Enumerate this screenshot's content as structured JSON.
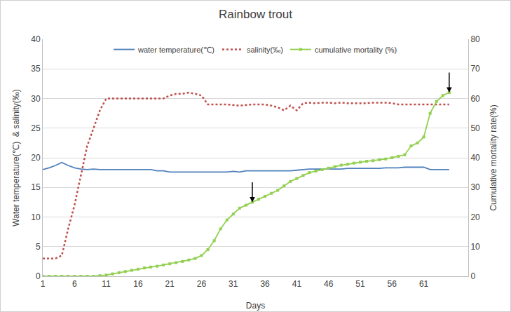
{
  "chart_data": {
    "type": "line",
    "title": "Rainbow trout",
    "x_label": "Days",
    "y_label": "Water temperature(℃)  & salinity(‰)",
    "y2_label": "Cumulative mortality rate(%)",
    "x": [
      1,
      2,
      3,
      4,
      5,
      6,
      7,
      8,
      9,
      10,
      11,
      12,
      13,
      14,
      15,
      16,
      17,
      18,
      19,
      20,
      21,
      22,
      23,
      24,
      25,
      26,
      27,
      28,
      29,
      30,
      31,
      32,
      33,
      34,
      35,
      36,
      37,
      38,
      39,
      40,
      41,
      42,
      43,
      44,
      45,
      46,
      47,
      48,
      49,
      50,
      51,
      52,
      53,
      54,
      55,
      56,
      57,
      58,
      59,
      60,
      61,
      62,
      63,
      64,
      65
    ],
    "xlim": [
      1,
      68
    ],
    "xticks": [
      1,
      6,
      11,
      16,
      21,
      26,
      31,
      36,
      41,
      46,
      51,
      56,
      61
    ],
    "ylim": [
      0,
      40
    ],
    "yticks": [
      0,
      5,
      10,
      15,
      20,
      25,
      30,
      35,
      40
    ],
    "y2lim": [
      0,
      80
    ],
    "y2ticks": [
      0,
      10,
      20,
      30,
      40,
      50,
      60,
      70,
      80
    ],
    "grid": true,
    "legend": "top",
    "series": [
      {
        "name": "water temperature(℃)",
        "color": "#4f81bd",
        "line_style": "solid",
        "values": [
          18.0,
          18.3,
          18.7,
          19.2,
          18.7,
          18.3,
          18.1,
          18.0,
          18.1,
          18.0,
          18.0,
          18.0,
          18.0,
          18.0,
          18.0,
          18.0,
          18.0,
          18.0,
          17.8,
          17.8,
          17.6,
          17.6,
          17.6,
          17.6,
          17.6,
          17.6,
          17.6,
          17.6,
          17.6,
          17.6,
          17.7,
          17.6,
          17.8,
          17.8,
          17.8,
          17.8,
          17.8,
          17.8,
          17.8,
          17.8,
          17.9,
          18.0,
          18.1,
          18.1,
          18.1,
          18.1,
          18.1,
          18.1,
          18.2,
          18.2,
          18.2,
          18.2,
          18.2,
          18.2,
          18.3,
          18.3,
          18.3,
          18.4,
          18.4,
          18.4,
          18.4,
          18.0,
          18.0,
          18.0,
          18.0
        ]
      },
      {
        "name": "salinity(‰)",
        "color": "#c0504d",
        "line_style": "dot",
        "values": [
          3.0,
          3.0,
          3.0,
          3.5,
          8.0,
          12.0,
          17.0,
          22.0,
          25.0,
          28.0,
          30.0,
          30.0,
          30.0,
          30.0,
          30.0,
          30.0,
          30.0,
          30.0,
          30.0,
          30.0,
          30.5,
          30.8,
          30.8,
          31.0,
          30.8,
          30.5,
          29.0,
          29.0,
          29.0,
          29.0,
          28.9,
          28.8,
          28.9,
          29.0,
          29.0,
          29.0,
          28.8,
          28.5,
          28.0,
          28.8,
          28.0,
          29.2,
          29.3,
          29.2,
          29.3,
          29.3,
          29.2,
          29.3,
          29.2,
          29.2,
          29.2,
          29.2,
          29.3,
          29.3,
          29.3,
          29.2,
          29.0,
          29.0,
          29.0,
          29.0,
          29.0,
          29.0,
          29.0,
          29.0,
          29.0
        ]
      },
      {
        "name": "cumulative mortality (%)",
        "color": "#92d050",
        "line_style": "solid",
        "marker": "square",
        "axis": "y2",
        "values": [
          0,
          0,
          0,
          0,
          0,
          0,
          0,
          0,
          0,
          0.2,
          0.4,
          0.8,
          1.2,
          1.6,
          2.0,
          2.4,
          2.8,
          3.1,
          3.4,
          3.8,
          4.2,
          4.6,
          5.0,
          5.5,
          6.0,
          7.0,
          9.0,
          12.0,
          16.0,
          19.0,
          21.0,
          23.0,
          24.0,
          25.0,
          26.0,
          27.0,
          28.0,
          29.0,
          30.5,
          32.0,
          33.0,
          34.0,
          35.0,
          35.5,
          36.0,
          36.5,
          37.0,
          37.5,
          37.8,
          38.2,
          38.5,
          38.8,
          39.0,
          39.3,
          39.6,
          40.0,
          40.5,
          41.0,
          44.0,
          45.0,
          47.0,
          55.0,
          59.0,
          61.0,
          62.0
        ]
      }
    ],
    "annotations": [
      {
        "x": 34,
        "y": 25,
        "axis": "y2"
      },
      {
        "x": 65,
        "y": 62,
        "axis": "y2"
      }
    ]
  }
}
